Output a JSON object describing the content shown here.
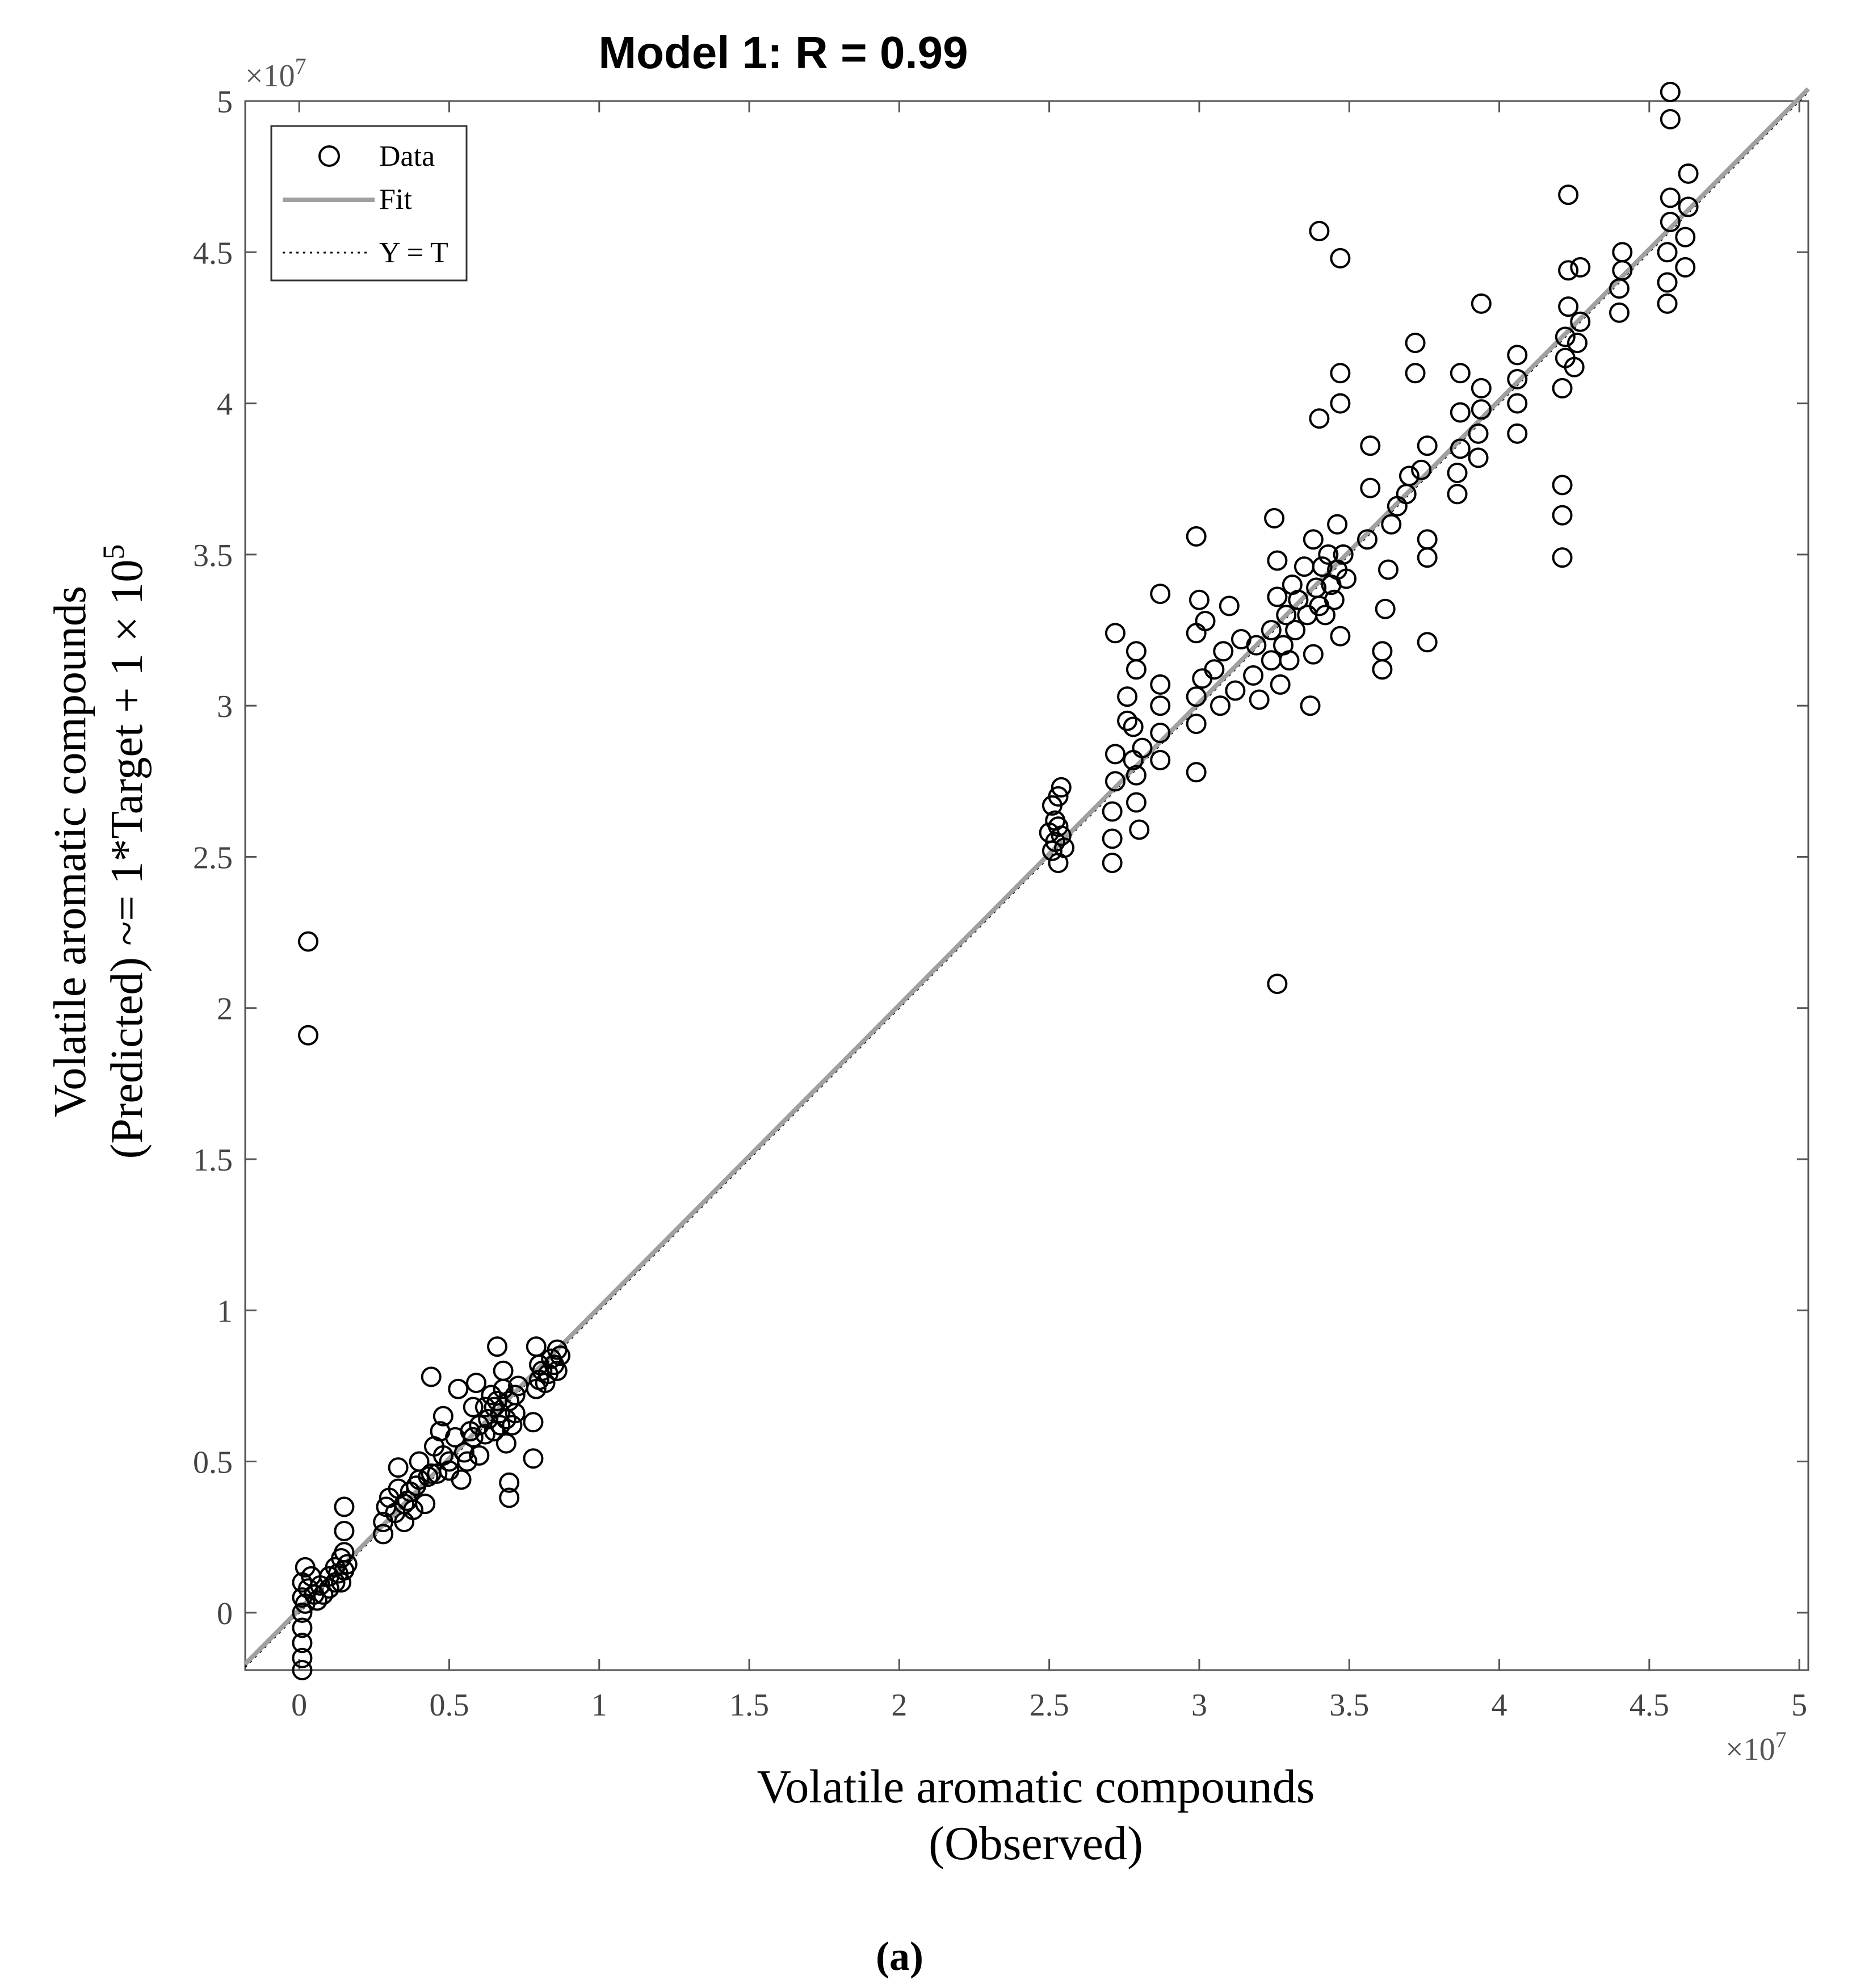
{
  "chart_data": {
    "type": "scatter",
    "title": "Model 1: R = 0.99",
    "xlabel_lines": [
      "Volatile aromatic compounds",
      "(Observed)"
    ],
    "ylabel_line1": "Volatile aromatic compounds",
    "ylabel_line2_text": "(Predicted) ~= 1*Target + 1 × 10",
    "ylabel_line2_sup": "5",
    "x_exponent_base": "×10",
    "x_exponent_power": "7",
    "y_exponent_base": "×10",
    "y_exponent_power": "7",
    "xlim": [
      -0.18,
      5.03
    ],
    "ylim": [
      -0.19,
      5.0
    ],
    "xticks": [
      0,
      0.5,
      1,
      1.5,
      2,
      2.5,
      3,
      3.5,
      4,
      4.5,
      5
    ],
    "xtick_labels": [
      "0",
      "0.5",
      "1",
      "1.5",
      "2",
      "2.5",
      "3",
      "3.5",
      "4",
      "4.5",
      "5"
    ],
    "yticks": [
      0,
      0.5,
      1,
      1.5,
      2,
      2.5,
      3,
      3.5,
      4,
      4.5,
      5
    ],
    "ytick_labels": [
      "0",
      "0.5",
      "1",
      "1.5",
      "2",
      "2.5",
      "3",
      "3.5",
      "4",
      "4.5",
      "5"
    ],
    "legend": {
      "position": "top-left",
      "entries": [
        {
          "label": "Data",
          "marker": "circle"
        },
        {
          "label": "Fit",
          "marker": "solid-line"
        },
        {
          "label": "Y = T",
          "marker": "dotted-line"
        }
      ]
    },
    "fit_line": {
      "slope": 1.0,
      "intercept": 0.01,
      "color": "#a0a0a0"
    },
    "identity_line": {
      "slope": 1.0,
      "intercept": 0.0
    },
    "series": [
      {
        "name": "Data",
        "points": [
          [
            0.01,
            0.0
          ],
          [
            0.01,
            0.05
          ],
          [
            0.01,
            0.1
          ],
          [
            0.02,
            0.15
          ],
          [
            0.01,
            -0.05
          ],
          [
            0.01,
            -0.1
          ],
          [
            0.01,
            -0.15
          ],
          [
            0.01,
            -0.19
          ],
          [
            0.02,
            0.03
          ],
          [
            0.03,
            0.08
          ],
          [
            0.04,
            0.12
          ],
          [
            0.05,
            0.06
          ],
          [
            0.06,
            0.04
          ],
          [
            0.07,
            0.09
          ],
          [
            0.08,
            0.06
          ],
          [
            0.1,
            0.08
          ],
          [
            0.1,
            0.12
          ],
          [
            0.12,
            0.1
          ],
          [
            0.12,
            0.15
          ],
          [
            0.13,
            0.13
          ],
          [
            0.14,
            0.1
          ],
          [
            0.14,
            0.18
          ],
          [
            0.15,
            0.14
          ],
          [
            0.15,
            0.2
          ],
          [
            0.16,
            0.16
          ],
          [
            0.15,
            0.27
          ],
          [
            0.15,
            0.35
          ],
          [
            0.28,
            0.26
          ],
          [
            0.28,
            0.3
          ],
          [
            0.29,
            0.35
          ],
          [
            0.3,
            0.38
          ],
          [
            0.32,
            0.33
          ],
          [
            0.33,
            0.41
          ],
          [
            0.33,
            0.48
          ],
          [
            0.35,
            0.3
          ],
          [
            0.35,
            0.36
          ],
          [
            0.36,
            0.37
          ],
          [
            0.37,
            0.4
          ],
          [
            0.38,
            0.34
          ],
          [
            0.39,
            0.42
          ],
          [
            0.4,
            0.44
          ],
          [
            0.4,
            0.5
          ],
          [
            0.42,
            0.36
          ],
          [
            0.43,
            0.45
          ],
          [
            0.44,
            0.46
          ],
          [
            0.44,
            0.78
          ],
          [
            0.45,
            0.55
          ],
          [
            0.46,
            0.46
          ],
          [
            0.47,
            0.6
          ],
          [
            0.48,
            0.52
          ],
          [
            0.48,
            0.65
          ],
          [
            0.5,
            0.5
          ],
          [
            0.5,
            0.47
          ],
          [
            0.52,
            0.58
          ],
          [
            0.53,
            0.74
          ],
          [
            0.54,
            0.44
          ],
          [
            0.55,
            0.53
          ],
          [
            0.56,
            0.5
          ],
          [
            0.57,
            0.6
          ],
          [
            0.58,
            0.58
          ],
          [
            0.58,
            0.68
          ],
          [
            0.59,
            0.76
          ],
          [
            0.6,
            0.52
          ],
          [
            0.6,
            0.62
          ],
          [
            0.62,
            0.59
          ],
          [
            0.62,
            0.68
          ],
          [
            0.63,
            0.64
          ],
          [
            0.64,
            0.72
          ],
          [
            0.65,
            0.6
          ],
          [
            0.65,
            0.68
          ],
          [
            0.66,
            0.7
          ],
          [
            0.66,
            0.88
          ],
          [
            0.67,
            0.62
          ],
          [
            0.67,
            0.66
          ],
          [
            0.68,
            0.74
          ],
          [
            0.68,
            0.8
          ],
          [
            0.69,
            0.56
          ],
          [
            0.69,
            0.64
          ],
          [
            0.7,
            0.7
          ],
          [
            0.7,
            0.43
          ],
          [
            0.7,
            0.38
          ],
          [
            0.71,
            0.62
          ],
          [
            0.72,
            0.72
          ],
          [
            0.72,
            0.66
          ],
          [
            0.73,
            0.75
          ],
          [
            0.78,
            0.51
          ],
          [
            0.78,
            0.63
          ],
          [
            0.79,
            0.74
          ],
          [
            0.79,
            0.88
          ],
          [
            0.8,
            0.77
          ],
          [
            0.8,
            0.82
          ],
          [
            0.81,
            0.8
          ],
          [
            0.82,
            0.76
          ],
          [
            0.83,
            0.79
          ],
          [
            0.84,
            0.84
          ],
          [
            0.85,
            0.82
          ],
          [
            0.86,
            0.87
          ],
          [
            0.86,
            0.8
          ],
          [
            0.87,
            0.85
          ],
          [
            0.03,
            2.22
          ],
          [
            0.03,
            1.91
          ],
          [
            3.26,
            2.08
          ],
          [
            2.5,
            2.58
          ],
          [
            2.51,
            2.67
          ],
          [
            2.51,
            2.52
          ],
          [
            2.52,
            2.55
          ],
          [
            2.52,
            2.62
          ],
          [
            2.53,
            2.7
          ],
          [
            2.53,
            2.48
          ],
          [
            2.53,
            2.6
          ],
          [
            2.54,
            2.73
          ],
          [
            2.54,
            2.57
          ],
          [
            2.55,
            2.53
          ],
          [
            2.71,
            2.48
          ],
          [
            2.71,
            2.56
          ],
          [
            2.71,
            2.65
          ],
          [
            2.72,
            2.75
          ],
          [
            2.72,
            2.84
          ],
          [
            2.72,
            3.24
          ],
          [
            2.76,
            2.95
          ],
          [
            2.76,
            3.03
          ],
          [
            2.78,
            2.82
          ],
          [
            2.78,
            2.93
          ],
          [
            2.79,
            2.68
          ],
          [
            2.79,
            2.77
          ],
          [
            2.79,
            3.12
          ],
          [
            2.79,
            3.18
          ],
          [
            2.8,
            2.59
          ],
          [
            2.81,
            2.86
          ],
          [
            2.87,
            2.82
          ],
          [
            2.87,
            2.91
          ],
          [
            2.87,
            3.0
          ],
          [
            2.87,
            3.07
          ],
          [
            2.87,
            3.37
          ],
          [
            2.99,
            2.78
          ],
          [
            2.99,
            2.94
          ],
          [
            2.99,
            3.03
          ],
          [
            2.99,
            3.24
          ],
          [
            2.99,
            3.56
          ],
          [
            3.0,
            3.35
          ],
          [
            3.01,
            3.09
          ],
          [
            3.02,
            3.28
          ],
          [
            3.05,
            3.12
          ],
          [
            3.07,
            3.0
          ],
          [
            3.08,
            3.18
          ],
          [
            3.1,
            3.33
          ],
          [
            3.12,
            3.05
          ],
          [
            3.14,
            3.22
          ],
          [
            3.18,
            3.1
          ],
          [
            3.19,
            3.2
          ],
          [
            3.2,
            3.02
          ],
          [
            3.24,
            3.15
          ],
          [
            3.24,
            3.25
          ],
          [
            3.25,
            3.62
          ],
          [
            3.26,
            3.36
          ],
          [
            3.26,
            3.48
          ],
          [
            3.27,
            3.07
          ],
          [
            3.28,
            3.2
          ],
          [
            3.29,
            3.3
          ],
          [
            3.3,
            3.15
          ],
          [
            3.31,
            3.4
          ],
          [
            3.32,
            3.25
          ],
          [
            3.33,
            3.35
          ],
          [
            3.35,
            3.46
          ],
          [
            3.36,
            3.3
          ],
          [
            3.37,
            3.0
          ],
          [
            3.38,
            3.17
          ],
          [
            3.38,
            3.55
          ],
          [
            3.39,
            3.39
          ],
          [
            3.4,
            3.33
          ],
          [
            3.4,
            3.95
          ],
          [
            3.4,
            4.57
          ],
          [
            3.41,
            3.46
          ],
          [
            3.42,
            3.3
          ],
          [
            3.43,
            3.5
          ],
          [
            3.44,
            3.4
          ],
          [
            3.45,
            3.35
          ],
          [
            3.46,
            3.45
          ],
          [
            3.46,
            3.6
          ],
          [
            3.47,
            3.23
          ],
          [
            3.47,
            4.0
          ],
          [
            3.47,
            4.1
          ],
          [
            3.47,
            4.48
          ],
          [
            3.48,
            3.5
          ],
          [
            3.49,
            3.42
          ],
          [
            3.56,
            3.55
          ],
          [
            3.57,
            3.72
          ],
          [
            3.57,
            3.86
          ],
          [
            3.61,
            3.12
          ],
          [
            3.61,
            3.18
          ],
          [
            3.62,
            3.32
          ],
          [
            3.63,
            3.45
          ],
          [
            3.64,
            3.6
          ],
          [
            3.66,
            3.66
          ],
          [
            3.69,
            3.7
          ],
          [
            3.7,
            3.76
          ],
          [
            3.72,
            4.1
          ],
          [
            3.72,
            4.2
          ],
          [
            3.74,
            3.78
          ],
          [
            3.76,
            3.49
          ],
          [
            3.76,
            3.55
          ],
          [
            3.76,
            3.86
          ],
          [
            3.76,
            3.21
          ],
          [
            3.86,
            3.7
          ],
          [
            3.86,
            3.77
          ],
          [
            3.87,
            3.85
          ],
          [
            3.87,
            3.97
          ],
          [
            3.87,
            4.1
          ],
          [
            3.93,
            3.82
          ],
          [
            3.93,
            3.9
          ],
          [
            3.94,
            3.98
          ],
          [
            3.94,
            4.05
          ],
          [
            3.94,
            4.33
          ],
          [
            4.06,
            3.9
          ],
          [
            4.06,
            4.0
          ],
          [
            4.06,
            4.08
          ],
          [
            4.06,
            4.16
          ],
          [
            4.21,
            3.49
          ],
          [
            4.21,
            3.63
          ],
          [
            4.21,
            3.73
          ],
          [
            4.21,
            4.05
          ],
          [
            4.22,
            4.15
          ],
          [
            4.22,
            4.22
          ],
          [
            4.23,
            4.32
          ],
          [
            4.23,
            4.44
          ],
          [
            4.23,
            4.69
          ],
          [
            4.25,
            4.12
          ],
          [
            4.26,
            4.2
          ],
          [
            4.27,
            4.27
          ],
          [
            4.27,
            4.45
          ],
          [
            4.4,
            4.3
          ],
          [
            4.4,
            4.38
          ],
          [
            4.41,
            4.44
          ],
          [
            4.41,
            4.5
          ],
          [
            4.56,
            4.33
          ],
          [
            4.56,
            4.4
          ],
          [
            4.56,
            4.5
          ],
          [
            4.57,
            4.6
          ],
          [
            4.57,
            4.68
          ],
          [
            4.57,
            4.94
          ],
          [
            4.57,
            5.03
          ],
          [
            4.62,
            4.45
          ],
          [
            4.62,
            4.55
          ],
          [
            4.63,
            4.65
          ],
          [
            4.63,
            4.76
          ]
        ]
      }
    ]
  },
  "caption": "(a)"
}
